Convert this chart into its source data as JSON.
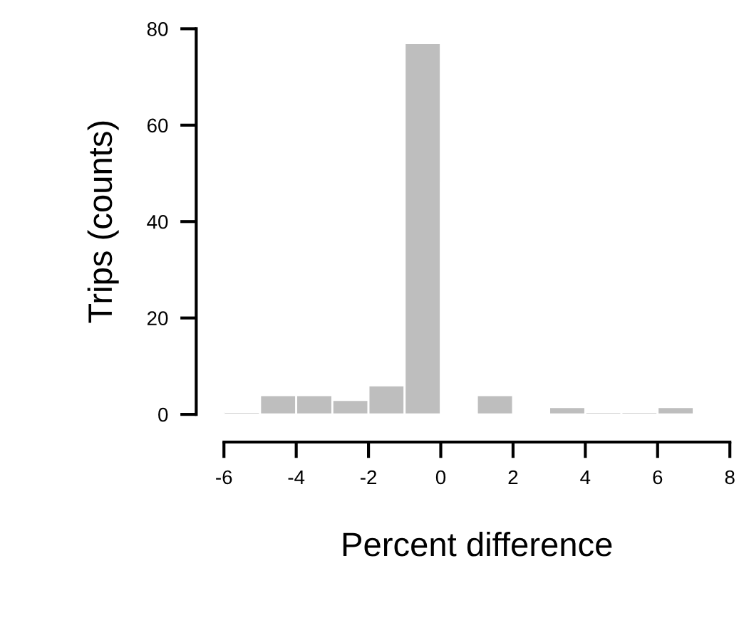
{
  "chart_data": {
    "type": "histogram",
    "xlabel": "Percent difference",
    "ylabel": "Trips (counts)",
    "bins": [
      -6,
      -5,
      -4,
      -3,
      -2,
      -1,
      0,
      1,
      2,
      3,
      4,
      5,
      6,
      7
    ],
    "values": [
      0.5,
      4,
      4,
      3,
      6,
      77,
      0,
      4,
      0,
      1.5,
      0.5,
      0.5,
      1.5
    ],
    "color": "#bebebe",
    "xlim": [
      -6,
      8
    ],
    "xticks": [
      -6,
      -4,
      -2,
      0,
      2,
      4,
      6,
      8
    ],
    "ylim": [
      0,
      80
    ],
    "yticks": [
      0,
      20,
      40,
      60,
      80
    ],
    "grid": false
  }
}
